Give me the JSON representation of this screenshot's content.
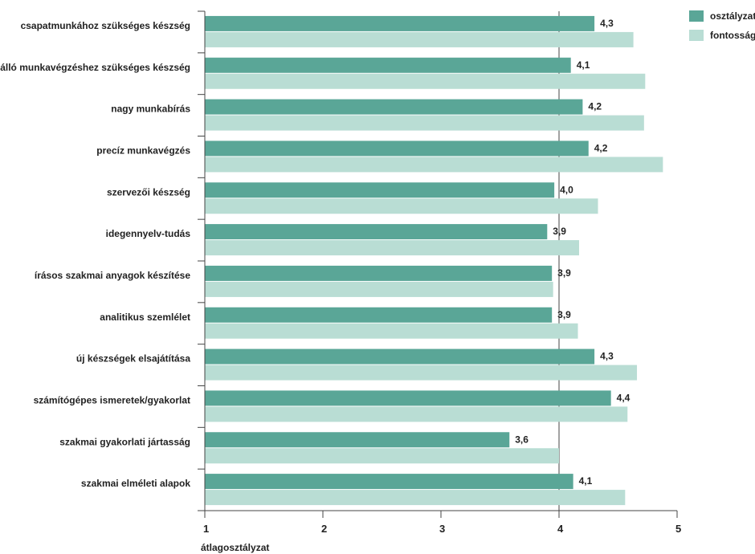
{
  "chart_data": {
    "type": "bar",
    "orientation": "horizontal",
    "categories": [
      "csapatmunkához szükséges készség",
      "önálló munkavégzéshez szükséges készség",
      "nagy munkabírás",
      "precíz munkavégzés",
      "szervezői készség",
      "idegennyelv-tudás",
      "írásos szakmai anyagok készítése",
      "analitikus szemlélet",
      "új készségek elsajátítása",
      "számítógépes ismeretek/gyakorlat",
      "szakmai gyakorlati jártasság",
      "szakmai elméleti alapok"
    ],
    "series": [
      {
        "name": "osztályzat",
        "color": "#5aa697",
        "values": [
          4.3,
          4.1,
          4.2,
          4.25,
          3.96,
          3.9,
          3.94,
          3.94,
          4.3,
          4.44,
          3.58,
          4.12
        ],
        "labels": [
          "4,3",
          "4,1",
          "4,2",
          "4,2",
          "4,0",
          "3,9",
          "3,9",
          "3,9",
          "4,3",
          "4,4",
          "3,6",
          "4,1"
        ]
      },
      {
        "name": "fontosság",
        "color": "#b9ddd4",
        "values": [
          4.63,
          4.73,
          4.72,
          4.88,
          4.33,
          4.17,
          3.95,
          4.16,
          4.66,
          4.58,
          4.0,
          4.56
        ]
      }
    ],
    "x_ticks": [
      "1",
      "2",
      "3",
      "4",
      "5"
    ],
    "xlim": [
      1,
      5
    ],
    "xlabel": "átlagosztályzat",
    "grid": "vertical line at 4",
    "legend": "top-right"
  }
}
